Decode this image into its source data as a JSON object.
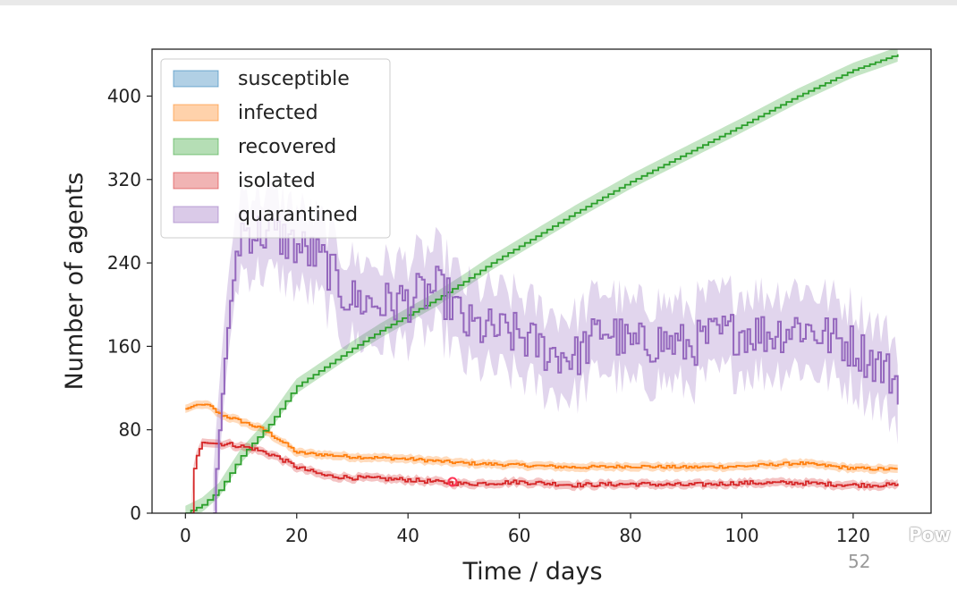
{
  "chart_data": {
    "type": "line",
    "xlabel": "Time / days",
    "ylabel": "Number of agents",
    "xlim": [
      -6,
      134
    ],
    "ylim": [
      0,
      445
    ],
    "xticks": [
      0,
      20,
      40,
      60,
      80,
      100,
      120
    ],
    "yticks": [
      0,
      80,
      160,
      240,
      320,
      400
    ],
    "legend_position": "top-left",
    "series": [
      {
        "name": "susceptible",
        "color": "#1f77b4",
        "values": []
      },
      {
        "name": "infected",
        "color": "#ff7f0e",
        "values": [
          [
            0,
            100
          ],
          [
            2,
            104
          ],
          [
            4,
            104
          ],
          [
            6,
            95
          ],
          [
            10,
            88
          ],
          [
            14,
            80
          ],
          [
            18,
            66
          ],
          [
            20,
            58
          ],
          [
            25,
            56
          ],
          [
            30,
            54
          ],
          [
            40,
            52
          ],
          [
            50,
            48
          ],
          [
            60,
            46
          ],
          [
            70,
            44
          ],
          [
            80,
            45
          ],
          [
            90,
            44
          ],
          [
            100,
            45
          ],
          [
            110,
            48
          ],
          [
            120,
            43
          ],
          [
            128,
            42
          ]
        ]
      },
      {
        "name": "recovered",
        "color": "#2ca02c",
        "values": [
          [
            0,
            0
          ],
          [
            3,
            8
          ],
          [
            6,
            22
          ],
          [
            10,
            55
          ],
          [
            15,
            85
          ],
          [
            19,
            115
          ],
          [
            20,
            122
          ],
          [
            25,
            140
          ],
          [
            30,
            158
          ],
          [
            35,
            175
          ],
          [
            40,
            190
          ],
          [
            45,
            205
          ],
          [
            50,
            222
          ],
          [
            55,
            240
          ],
          [
            60,
            256
          ],
          [
            70,
            288
          ],
          [
            80,
            318
          ],
          [
            90,
            345
          ],
          [
            100,
            372
          ],
          [
            110,
            400
          ],
          [
            120,
            425
          ],
          [
            128,
            440
          ]
        ]
      },
      {
        "name": "isolated",
        "color": "#d62728",
        "values": [
          [
            1,
            0
          ],
          [
            1,
            30
          ],
          [
            2,
            55
          ],
          [
            3,
            68
          ],
          [
            5,
            67
          ],
          [
            8,
            66
          ],
          [
            12,
            62
          ],
          [
            16,
            55
          ],
          [
            20,
            44
          ],
          [
            25,
            36
          ],
          [
            30,
            34
          ],
          [
            35,
            33
          ],
          [
            40,
            32
          ],
          [
            50,
            28
          ],
          [
            60,
            30
          ],
          [
            70,
            27
          ],
          [
            80,
            28
          ],
          [
            90,
            27
          ],
          [
            100,
            29
          ],
          [
            110,
            29
          ],
          [
            120,
            27
          ],
          [
            128,
            27
          ]
        ]
      },
      {
        "name": "quarantined",
        "color": "#9467bd",
        "values": [
          [
            5,
            0
          ],
          [
            6,
            80
          ],
          [
            7,
            150
          ],
          [
            8,
            200
          ],
          [
            9,
            250
          ],
          [
            10,
            272
          ],
          [
            12,
            270
          ],
          [
            15,
            268
          ],
          [
            18,
            262
          ],
          [
            20,
            255
          ],
          [
            22,
            250
          ],
          [
            25,
            240
          ],
          [
            28,
            212
          ],
          [
            30,
            205
          ],
          [
            35,
            200
          ],
          [
            40,
            205
          ],
          [
            45,
            215
          ],
          [
            48,
            200
          ],
          [
            50,
            180
          ],
          [
            55,
            175
          ],
          [
            60,
            170
          ],
          [
            65,
            155
          ],
          [
            70,
            150
          ],
          [
            75,
            178
          ],
          [
            80,
            160
          ],
          [
            85,
            165
          ],
          [
            90,
            160
          ],
          [
            95,
            170
          ],
          [
            100,
            175
          ],
          [
            105,
            172
          ],
          [
            110,
            180
          ],
          [
            115,
            170
          ],
          [
            120,
            160
          ],
          [
            125,
            140
          ],
          [
            128,
            125
          ]
        ]
      }
    ],
    "marker_point": {
      "x": 48,
      "y": 30,
      "color": "#ff3355"
    }
  },
  "slide_number": "52",
  "watermark": "Pow"
}
